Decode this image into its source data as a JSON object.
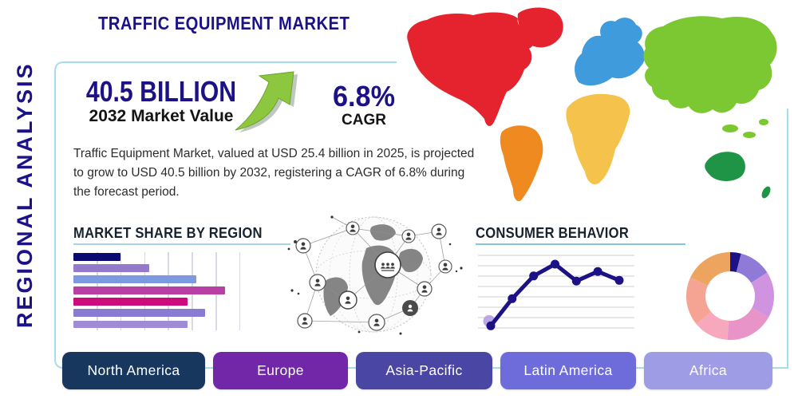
{
  "page": {
    "title": "TRAFFIC EQUIPMENT MARKET",
    "side_label": "REGIONAL ANALYSIS"
  },
  "stats": {
    "market_value": "40.5 BILLION",
    "market_value_caption": "2032 Market Value",
    "cagr_value": "6.8%",
    "cagr_caption": "CAGR",
    "description": "Traffic Equipment Market, valued at USD 25.4 billion in 2025, is projected to grow to USD 40.5 billion by 2032, registering a CAGR of 6.8% during the forecast period."
  },
  "sections": {
    "market_share_title": "MARKET SHARE BY REGION",
    "consumer_behavior_title": "CONSUMER BEHAVIOR"
  },
  "region_buttons": [
    {
      "label": "North America",
      "color": "#17375e"
    },
    {
      "label": "Europe",
      "color": "#7127a7"
    },
    {
      "label": "Asia-Pacific",
      "color": "#4a47a4"
    },
    {
      "label": "Latin America",
      "color": "#6e6cda"
    },
    {
      "label": "Africa",
      "color": "#9e9ce5"
    }
  ],
  "colors": {
    "heading_navy": "#1b1287",
    "box_border": "#a7dcef",
    "underline_market_share": "#a9d3e6",
    "underline_consumer": "#86c6da",
    "arrow_green": "#8dc63f",
    "arrow_shadow": "#8a9a8a"
  },
  "map": {
    "regions": [
      {
        "name": "North America",
        "color": "#e5232e"
      },
      {
        "name": "South America",
        "color": "#ee8a20"
      },
      {
        "name": "Europe",
        "color": "#3f9bdb"
      },
      {
        "name": "Africa",
        "color": "#f5c34b"
      },
      {
        "name": "Asia",
        "color": "#7cc832"
      },
      {
        "name": "Australia",
        "color": "#1f9447"
      }
    ]
  },
  "chart_data": [
    {
      "id": "market_share_by_region",
      "type": "bar",
      "orientation": "horizontal",
      "title": "MARKET SHARE BY REGION",
      "categories": [
        "bar-1",
        "bar-2",
        "bar-3",
        "bar-4",
        "bar-5",
        "bar-6",
        "bar-7"
      ],
      "values": [
        31,
        50,
        81,
        100,
        75,
        87,
        75
      ],
      "value_unit": "relative length, longest bar = 100 (no axis labels shown)",
      "bar_colors": [
        "#0a0a70",
        "#9579ca",
        "#7d99e0",
        "#b83fa4",
        "#cc0c7c",
        "#8a7bd2",
        "#9f8bd6"
      ],
      "grid": true,
      "axis_labels_visible": false
    },
    {
      "id": "consumer_behavior",
      "type": "line",
      "title": "CONSUMER BEHAVIOR",
      "x": [
        1,
        2,
        3,
        4,
        5,
        6,
        7
      ],
      "values": [
        4,
        41,
        72,
        88,
        65,
        78,
        66
      ],
      "value_unit": "relative height, chart top = 100 (no axis labels shown)",
      "line_color": "#1c1285",
      "first_point_halo_color": "#b49fe3",
      "marker": "circle",
      "grid": "horizontal",
      "axis_labels_visible": false
    },
    {
      "id": "regional_share_donut",
      "type": "pie",
      "subtype": "donut",
      "values": [
        4,
        12,
        17,
        18,
        13,
        18,
        18
      ],
      "value_unit": "percent, estimated from arc angles",
      "colors": [
        "#1c1285",
        "#8f7ad8",
        "#cf93e0",
        "#e894c8",
        "#f7a8bd",
        "#f5a493",
        "#eda45f"
      ],
      "labels_visible": false,
      "legend": "none"
    }
  ]
}
